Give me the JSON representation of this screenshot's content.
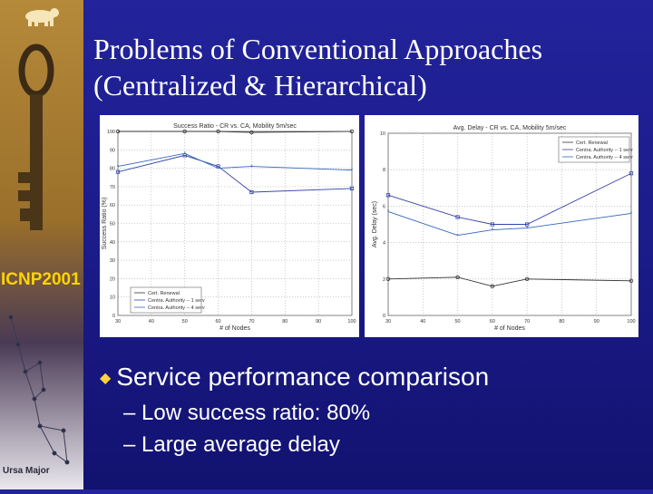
{
  "slide": {
    "title_line1": "Problems of Conventional Approaches",
    "title_line2": "(Centralized & Hierarchical)",
    "bullet": "Service performance comparison",
    "sub_bullets": [
      "– Low success ratio: 80%",
      "– Large average delay"
    ]
  },
  "sidebar": {
    "logo_text": "ICNP2001",
    "constellation_label": "Ursa Major"
  },
  "colors": {
    "background": "#1f1f95",
    "title": "#ffffff",
    "bullet_marker": "#ffd23f",
    "logo_yellow": "#ffd400"
  },
  "chart_data": [
    {
      "type": "line",
      "title": "Success Ratio - CR vs. CA, Mobility 5m/sec",
      "xlabel": "# of Nodes",
      "ylabel": "Success Ratio (%)",
      "x": [
        30,
        40,
        50,
        60,
        70,
        80,
        90,
        100
      ],
      "xlim": [
        30,
        100
      ],
      "ylim": [
        0,
        100
      ],
      "yticks": [
        0,
        10,
        20,
        30,
        40,
        50,
        60,
        70,
        80,
        90,
        100
      ],
      "legend_position": "bottom-left",
      "series": [
        {
          "name": "Cert. Renewal",
          "marker": "circle",
          "x": [
            30,
            50,
            60,
            70,
            100
          ],
          "values": [
            100,
            100,
            100,
            99.5,
            100
          ]
        },
        {
          "name": "Centra. Authority -- 1 serv",
          "marker": "square",
          "x": [
            30,
            50,
            60,
            70,
            100
          ],
          "values": [
            78,
            87,
            81,
            67,
            69
          ]
        },
        {
          "name": "Centra. Authority -- 4 serv",
          "marker": "star",
          "x": [
            30,
            50,
            60,
            70,
            100
          ],
          "values": [
            81,
            88,
            80,
            81,
            79
          ]
        }
      ]
    },
    {
      "type": "line",
      "title": "Avg. Delay - CR vs. CA, Mobility 5m/sec",
      "xlabel": "# of Nodes",
      "ylabel": "Avg. Delay (sec)",
      "x": [
        30,
        40,
        50,
        60,
        70,
        80,
        90,
        100
      ],
      "xlim": [
        30,
        100
      ],
      "ylim": [
        0,
        10
      ],
      "yticks": [
        0,
        2,
        4,
        6,
        8,
        10
      ],
      "legend_position": "top-right",
      "series": [
        {
          "name": "Cert. Renewal",
          "marker": "circle",
          "x": [
            30,
            50,
            60,
            70,
            100
          ],
          "values": [
            2,
            2.1,
            1.6,
            2.0,
            1.9
          ]
        },
        {
          "name": "Centra. Authority -- 1 serv",
          "marker": "square",
          "x": [
            30,
            50,
            60,
            70,
            100
          ],
          "values": [
            6.6,
            5.4,
            5.0,
            5.0,
            7.8
          ]
        },
        {
          "name": "Centra. Authority -- 4 serv",
          "marker": "star",
          "x": [
            30,
            50,
            60,
            70,
            100
          ],
          "values": [
            5.7,
            4.4,
            4.7,
            4.8,
            5.6
          ]
        }
      ]
    }
  ]
}
